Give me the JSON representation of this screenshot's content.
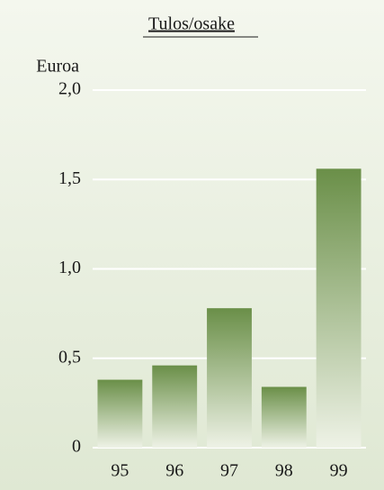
{
  "chart_data": {
    "type": "bar",
    "title": "Tulos/osake",
    "y_label": "Euroa",
    "categories": [
      "95",
      "96",
      "97",
      "98",
      "99"
    ],
    "values": [
      0.38,
      0.46,
      0.78,
      0.34,
      1.56
    ],
    "color": "#6a8f48",
    "ylim": [
      0,
      2.0
    ],
    "yticks": [
      0,
      {
        "value": 0.5,
        "label": "0,5"
      },
      {
        "value": 1.0,
        "label": "1,0"
      },
      {
        "value": 1.5,
        "label": "1,5"
      },
      {
        "value": 2.0,
        "label": "2,0"
      }
    ],
    "grid": true
  }
}
